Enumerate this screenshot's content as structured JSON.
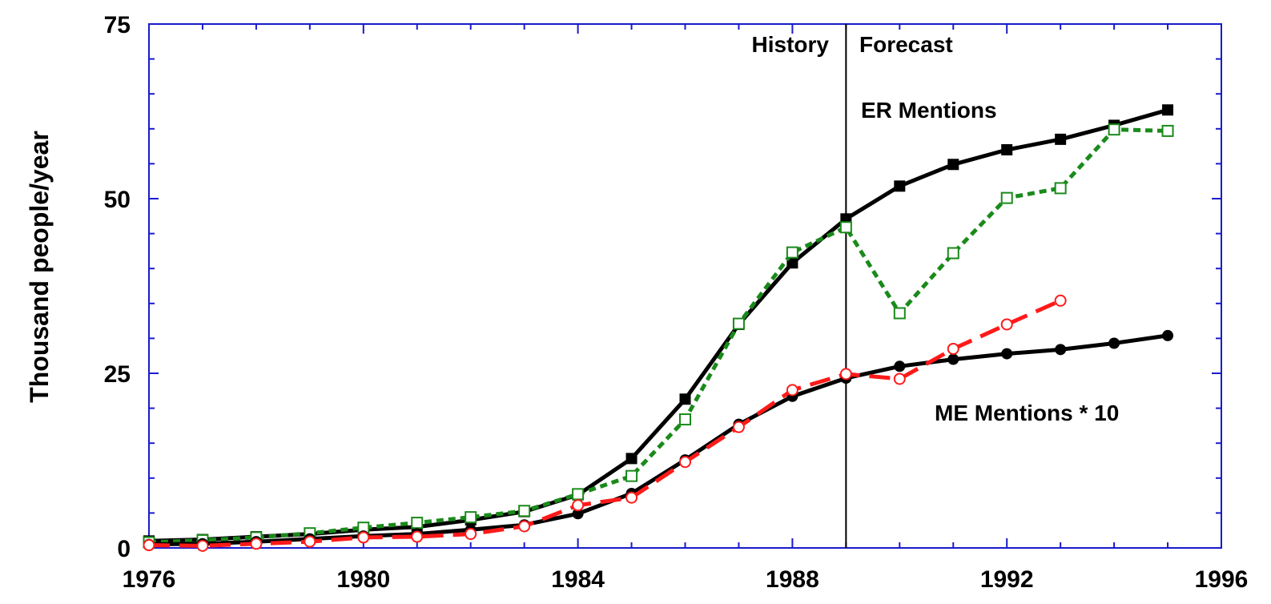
{
  "chart_data": {
    "type": "line",
    "title": "",
    "xlabel": "",
    "ylabel": "Thousand people/year",
    "xlim": [
      1976,
      1996
    ],
    "ylim": [
      0,
      75
    ],
    "x_ticks": [
      1976,
      1980,
      1984,
      1988,
      1992,
      1996
    ],
    "y_ticks": [
      0,
      25,
      50,
      75
    ],
    "grid": false,
    "divider_x": 1989,
    "annotations": {
      "history": "History",
      "forecast": "Forecast",
      "er": "ER Mentions",
      "me": "ME Mentions * 10"
    },
    "colors": {
      "axis": "#1a1acc",
      "black": "#000000",
      "green": "#1a8a1a",
      "red": "#ff1a1a"
    },
    "series": [
      {
        "style": "solid",
        "marker": "filled-square",
        "color": "#000000",
        "x": [
          1976,
          1977,
          1978,
          1979,
          1980,
          1981,
          1982,
          1983,
          1984,
          1985,
          1986,
          1987,
          1988,
          1989,
          1990,
          1991,
          1992,
          1993,
          1994,
          1995
        ],
        "y": [
          1.0,
          1.2,
          1.6,
          2.0,
          2.6,
          3.0,
          4.0,
          5.2,
          7.6,
          12.8,
          21.3,
          32.0,
          40.8,
          47.1,
          51.8,
          54.9,
          57.0,
          58.5,
          60.5,
          62.7
        ]
      },
      {
        "style": "dotted",
        "marker": "open-square",
        "color": "#1a8a1a",
        "x": [
          1976,
          1977,
          1978,
          1979,
          1980,
          1981,
          1982,
          1983,
          1984,
          1985,
          1986,
          1987,
          1988,
          1989,
          1990,
          1991,
          1992,
          1993,
          1994,
          1995
        ],
        "y": [
          0.8,
          1.1,
          1.5,
          2.1,
          2.9,
          3.6,
          4.4,
          5.3,
          7.7,
          10.3,
          18.4,
          32.1,
          42.3,
          45.9,
          33.6,
          42.2,
          50.1,
          51.5,
          59.9,
          59.7
        ]
      },
      {
        "style": "solid",
        "marker": "filled-circle",
        "color": "#000000",
        "x": [
          1976,
          1977,
          1978,
          1979,
          1980,
          1981,
          1982,
          1983,
          1984,
          1985,
          1986,
          1987,
          1988,
          1989,
          1990,
          1991,
          1992,
          1993,
          1994,
          1995
        ],
        "y": [
          0.5,
          0.6,
          0.9,
          1.3,
          1.7,
          2.0,
          2.6,
          3.3,
          4.9,
          7.8,
          12.6,
          17.7,
          21.7,
          24.3,
          26.0,
          27.0,
          27.8,
          28.4,
          29.3,
          30.4
        ]
      },
      {
        "style": "dashed",
        "marker": "open-circle",
        "color": "#ff1a1a",
        "x": [
          1976,
          1977,
          1978,
          1979,
          1980,
          1981,
          1982,
          1983,
          1984,
          1985,
          1986,
          1987,
          1988,
          1989,
          1990,
          1991,
          1992,
          1993
        ],
        "y": [
          0.4,
          0.3,
          0.6,
          0.9,
          1.5,
          1.6,
          2.0,
          3.1,
          6.1,
          7.2,
          12.3,
          17.3,
          22.6,
          24.9,
          24.2,
          28.5,
          32.0,
          35.4
        ]
      }
    ]
  }
}
